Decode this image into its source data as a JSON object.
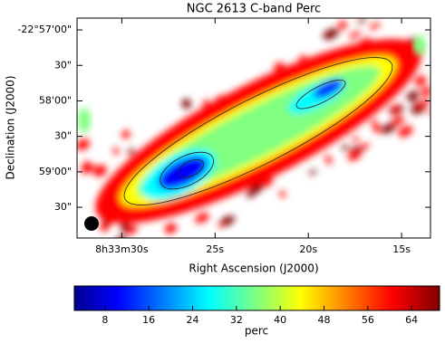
{
  "chart_data": {
    "type": "image",
    "title": "NGC 2613   C-band   Perc",
    "xlabel": "Right Ascension (J2000)",
    "ylabel": "Declination (J2000)",
    "xlim": [
      32.4,
      13.45
    ],
    "xticks": [
      {
        "value": 30,
        "label": "8h33m30s"
      },
      {
        "value": 25,
        "label": "25s"
      },
      {
        "value": 20,
        "label": "20s"
      },
      {
        "value": 15,
        "label": "15s"
      }
    ],
    "ylim": [
      -82796,
      -82610
    ],
    "yticks": [
      {
        "value": -82620,
        "label": "-22°57'00\""
      },
      {
        "value": -82650,
        "label": "30\""
      },
      {
        "value": -82680,
        "label": "58'00\""
      },
      {
        "value": -82710,
        "label": "30\""
      },
      {
        "value": -82740,
        "label": "59'00\""
      },
      {
        "value": -82770,
        "label": "30\""
      }
    ],
    "colormap": "jet",
    "colorbar": {
      "label": "perc",
      "clim": [
        2.4,
        69.1
      ],
      "ticks": [
        8,
        16,
        24,
        32,
        40,
        48,
        56,
        64
      ]
    }
  }
}
